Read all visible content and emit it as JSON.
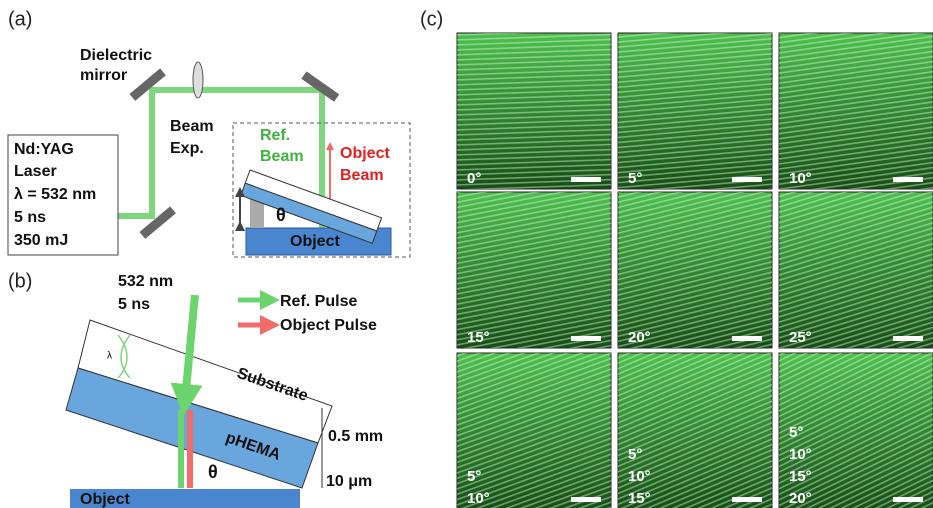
{
  "panel_a": {
    "label": "(a)",
    "mirror_label": [
      "Dielectric",
      "mirror"
    ],
    "beam_exp": [
      "Beam",
      "Exp."
    ],
    "laser": [
      "Nd:YAG",
      "Laser",
      "λ = 532 nm",
      "5 ns",
      "350 mJ"
    ],
    "ref_beam": [
      "Ref.",
      "Beam"
    ],
    "object_beam": [
      "Object",
      "Beam"
    ],
    "theta": "θ",
    "object": "Object"
  },
  "panel_b": {
    "label": "(b)",
    "pulse": [
      "532 nm",
      "5 ns"
    ],
    "legend": [
      "Ref. Pulse",
      "Object Pulse"
    ],
    "lambda": "λ",
    "substrate": "Substrate",
    "phema": "pHEMA",
    "thickness_substrate": "0.5 mm",
    "thickness_phema": "10 μm",
    "theta": "θ",
    "object": "Object"
  },
  "panel_c": {
    "label": "(c)",
    "tiles": [
      [
        "0°"
      ],
      [
        "5°"
      ],
      [
        "10°"
      ],
      [
        "15°"
      ],
      [
        "20°"
      ],
      [
        "25°"
      ],
      [
        "5°",
        "10°"
      ],
      [
        "5°",
        "10°",
        "15°"
      ],
      [
        "5°",
        "10°",
        "15°",
        "20°"
      ]
    ]
  }
}
